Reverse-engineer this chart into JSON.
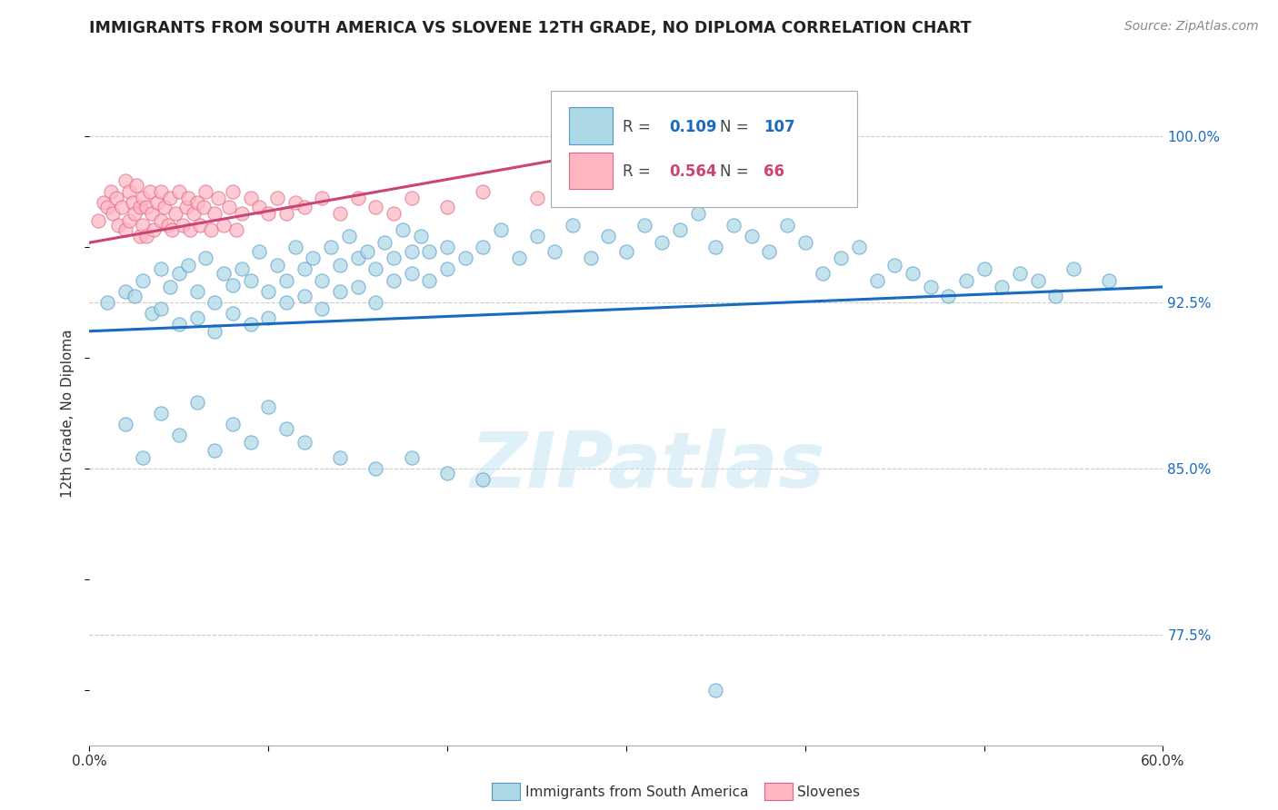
{
  "title": "IMMIGRANTS FROM SOUTH AMERICA VS SLOVENE 12TH GRADE, NO DIPLOMA CORRELATION CHART",
  "source": "Source: ZipAtlas.com",
  "ylabel": "12th Grade, No Diploma",
  "ytick_labels": [
    "100.0%",
    "92.5%",
    "85.0%",
    "77.5%"
  ],
  "ytick_values": [
    1.0,
    0.925,
    0.85,
    0.775
  ],
  "xlim": [
    0.0,
    0.6
  ],
  "ylim": [
    0.725,
    1.025
  ],
  "legend_r_blue": "0.109",
  "legend_n_blue": "107",
  "legend_r_pink": "0.564",
  "legend_n_pink": "66",
  "blue_color": "#ADD8E6",
  "blue_edge_color": "#5599CC",
  "blue_line_color": "#1A6BBF",
  "pink_color": "#FFB6C1",
  "pink_edge_color": "#DD6688",
  "pink_line_color": "#CC4477",
  "watermark_text": "ZIPatlas",
  "blue_scatter_x": [
    0.01,
    0.02,
    0.025,
    0.03,
    0.035,
    0.04,
    0.04,
    0.045,
    0.05,
    0.05,
    0.055,
    0.06,
    0.06,
    0.065,
    0.07,
    0.07,
    0.075,
    0.08,
    0.08,
    0.085,
    0.09,
    0.09,
    0.095,
    0.1,
    0.1,
    0.105,
    0.11,
    0.11,
    0.115,
    0.12,
    0.12,
    0.125,
    0.13,
    0.13,
    0.135,
    0.14,
    0.14,
    0.145,
    0.15,
    0.15,
    0.155,
    0.16,
    0.16,
    0.165,
    0.17,
    0.17,
    0.175,
    0.18,
    0.18,
    0.185,
    0.19,
    0.19,
    0.2,
    0.2,
    0.21,
    0.22,
    0.23,
    0.24,
    0.25,
    0.26,
    0.27,
    0.28,
    0.29,
    0.3,
    0.31,
    0.32,
    0.33,
    0.34,
    0.35,
    0.36,
    0.37,
    0.38,
    0.39,
    0.4,
    0.41,
    0.42,
    0.43,
    0.44,
    0.45,
    0.46,
    0.47,
    0.48,
    0.49,
    0.5,
    0.51,
    0.52,
    0.53,
    0.54,
    0.55,
    0.57,
    0.02,
    0.03,
    0.04,
    0.05,
    0.06,
    0.07,
    0.08,
    0.09,
    0.1,
    0.11,
    0.12,
    0.14,
    0.16,
    0.18,
    0.2,
    0.22,
    0.35
  ],
  "blue_scatter_y": [
    0.925,
    0.93,
    0.928,
    0.935,
    0.92,
    0.94,
    0.922,
    0.932,
    0.938,
    0.915,
    0.942,
    0.93,
    0.918,
    0.945,
    0.925,
    0.912,
    0.938,
    0.933,
    0.92,
    0.94,
    0.935,
    0.915,
    0.948,
    0.93,
    0.918,
    0.942,
    0.935,
    0.925,
    0.95,
    0.94,
    0.928,
    0.945,
    0.935,
    0.922,
    0.95,
    0.942,
    0.93,
    0.955,
    0.945,
    0.932,
    0.948,
    0.94,
    0.925,
    0.952,
    0.945,
    0.935,
    0.958,
    0.948,
    0.938,
    0.955,
    0.948,
    0.935,
    0.95,
    0.94,
    0.945,
    0.95,
    0.958,
    0.945,
    0.955,
    0.948,
    0.96,
    0.945,
    0.955,
    0.948,
    0.96,
    0.952,
    0.958,
    0.965,
    0.95,
    0.96,
    0.955,
    0.948,
    0.96,
    0.952,
    0.938,
    0.945,
    0.95,
    0.935,
    0.942,
    0.938,
    0.932,
    0.928,
    0.935,
    0.94,
    0.932,
    0.938,
    0.935,
    0.928,
    0.94,
    0.935,
    0.87,
    0.855,
    0.875,
    0.865,
    0.88,
    0.858,
    0.87,
    0.862,
    0.878,
    0.868,
    0.862,
    0.855,
    0.85,
    0.855,
    0.848,
    0.845,
    0.75
  ],
  "pink_scatter_x": [
    0.005,
    0.008,
    0.01,
    0.012,
    0.013,
    0.015,
    0.016,
    0.018,
    0.02,
    0.02,
    0.022,
    0.022,
    0.024,
    0.025,
    0.026,
    0.028,
    0.028,
    0.03,
    0.03,
    0.032,
    0.032,
    0.034,
    0.035,
    0.036,
    0.038,
    0.04,
    0.04,
    0.042,
    0.044,
    0.045,
    0.046,
    0.048,
    0.05,
    0.052,
    0.054,
    0.055,
    0.056,
    0.058,
    0.06,
    0.062,
    0.064,
    0.065,
    0.068,
    0.07,
    0.072,
    0.075,
    0.078,
    0.08,
    0.082,
    0.085,
    0.09,
    0.095,
    0.1,
    0.105,
    0.11,
    0.115,
    0.12,
    0.13,
    0.14,
    0.15,
    0.16,
    0.17,
    0.18,
    0.2,
    0.22,
    0.25
  ],
  "pink_scatter_y": [
    0.962,
    0.97,
    0.968,
    0.975,
    0.965,
    0.972,
    0.96,
    0.968,
    0.98,
    0.958,
    0.975,
    0.962,
    0.97,
    0.965,
    0.978,
    0.968,
    0.955,
    0.972,
    0.96,
    0.968,
    0.955,
    0.975,
    0.965,
    0.958,
    0.97,
    0.975,
    0.962,
    0.968,
    0.96,
    0.972,
    0.958,
    0.965,
    0.975,
    0.96,
    0.968,
    0.972,
    0.958,
    0.965,
    0.97,
    0.96,
    0.968,
    0.975,
    0.958,
    0.965,
    0.972,
    0.96,
    0.968,
    0.975,
    0.958,
    0.965,
    0.972,
    0.968,
    0.965,
    0.972,
    0.965,
    0.97,
    0.968,
    0.972,
    0.965,
    0.972,
    0.968,
    0.965,
    0.972,
    0.968,
    0.975,
    0.972
  ],
  "blue_line_x": [
    0.0,
    0.6
  ],
  "blue_line_y": [
    0.912,
    0.932
  ],
  "pink_line_x": [
    0.0,
    0.28
  ],
  "pink_line_y": [
    0.952,
    0.992
  ]
}
